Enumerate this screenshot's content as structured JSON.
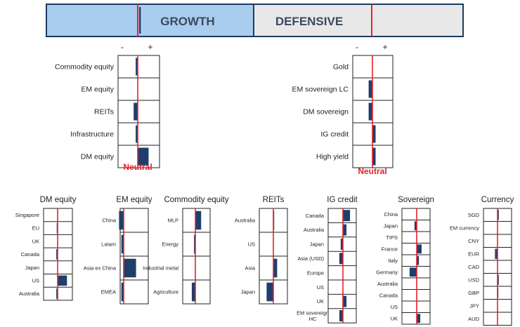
{
  "colors": {
    "bar": "#1f3f6b",
    "neutral_line": "#e8202a",
    "grid": "#222222",
    "growth_fill": "#a9cdee",
    "defensive_fill": "#e8e8e8",
    "banner_border": "#1b3a61",
    "label": "#222222",
    "neutral_text": "#e8202a"
  },
  "banner": {
    "growth_label": "GROWTH",
    "defensive_label": "DEFENSIVE",
    "growth_tilt": -0.3,
    "defensive_tilt": 0.1
  },
  "scale": {
    "minus": "-",
    "plus": "+",
    "min": -3,
    "max": 3
  },
  "neutral_label": "Neutral",
  "chart_data": [
    {
      "type": "bar",
      "title": "",
      "categories": [
        "Commodity equity",
        "EM equity",
        "REITs",
        "Infrastructure",
        "DM equity"
      ],
      "values": [
        -0.3,
        0,
        -0.6,
        -0.3,
        1.6
      ],
      "xlim": [
        -3,
        3
      ]
    },
    {
      "type": "bar",
      "title": "",
      "categories": [
        "Gold",
        "EM sovereign LC",
        "DM sovereign",
        "IG credit",
        "High yield"
      ],
      "values": [
        0,
        -0.6,
        -0.6,
        0.5,
        0.5
      ],
      "xlim": [
        -3,
        3
      ]
    },
    {
      "type": "bar",
      "title": "DM equity",
      "categories": [
        "Singapore",
        "EU",
        "UK",
        "Canada",
        "Japan",
        "US",
        "Australia"
      ],
      "values": [
        0,
        -0.2,
        0,
        -0.3,
        0,
        2.1,
        -0.3
      ],
      "xlim": [
        -3,
        3
      ]
    },
    {
      "type": "bar",
      "title": "EM equity",
      "categories": [
        "China",
        "Latam",
        "Asia ex China",
        "EMEA"
      ],
      "values": [
        -0.6,
        -0.3,
        1.6,
        -0.3
      ],
      "xlim": [
        -3,
        3
      ]
    },
    {
      "type": "bar",
      "title": "Commodity equity",
      "categories": [
        "MLP",
        "Energy",
        "Industrial metal",
        "Agriculture"
      ],
      "values": [
        1.3,
        -0.3,
        0,
        -0.8
      ],
      "xlim": [
        -3,
        3
      ]
    },
    {
      "type": "bar",
      "title": "REITs",
      "categories": [
        "Australia",
        "US",
        "Asia",
        "Japan"
      ],
      "values": [
        0.2,
        0,
        0.9,
        -1.6
      ],
      "xlim": [
        -3,
        3
      ]
    },
    {
      "type": "bar",
      "title": "IG credit",
      "categories": [
        "Canada",
        "Australia",
        "Japan",
        "Asia (USD)",
        "Europe",
        "US",
        "UK",
        "EM sovereign HC"
      ],
      "values": [
        1.6,
        0.8,
        -0.5,
        -0.8,
        0,
        0,
        0.8,
        -0.8
      ],
      "xlim": [
        -3,
        3
      ]
    },
    {
      "type": "bar",
      "title": "Sovereign",
      "categories": [
        "China",
        "Japan",
        "TIPS",
        "France",
        "Italy",
        "Germany",
        "Australia",
        "Canada",
        "US",
        "UK"
      ],
      "values": [
        0,
        -0.5,
        0,
        1.1,
        0.5,
        -1.6,
        0,
        0,
        0,
        0.8
      ],
      "xlim": [
        -3,
        3
      ]
    },
    {
      "type": "bar",
      "title": "Currency",
      "categories": [
        "SGD",
        "EM currency",
        "CNY",
        "EUR",
        "CAD",
        "USD",
        "GBP",
        "JPY",
        "AUD"
      ],
      "values": [
        0.3,
        0,
        0,
        -0.6,
        0,
        0.3,
        0.2,
        0,
        0
      ],
      "xlim": [
        -3,
        3
      ]
    }
  ]
}
